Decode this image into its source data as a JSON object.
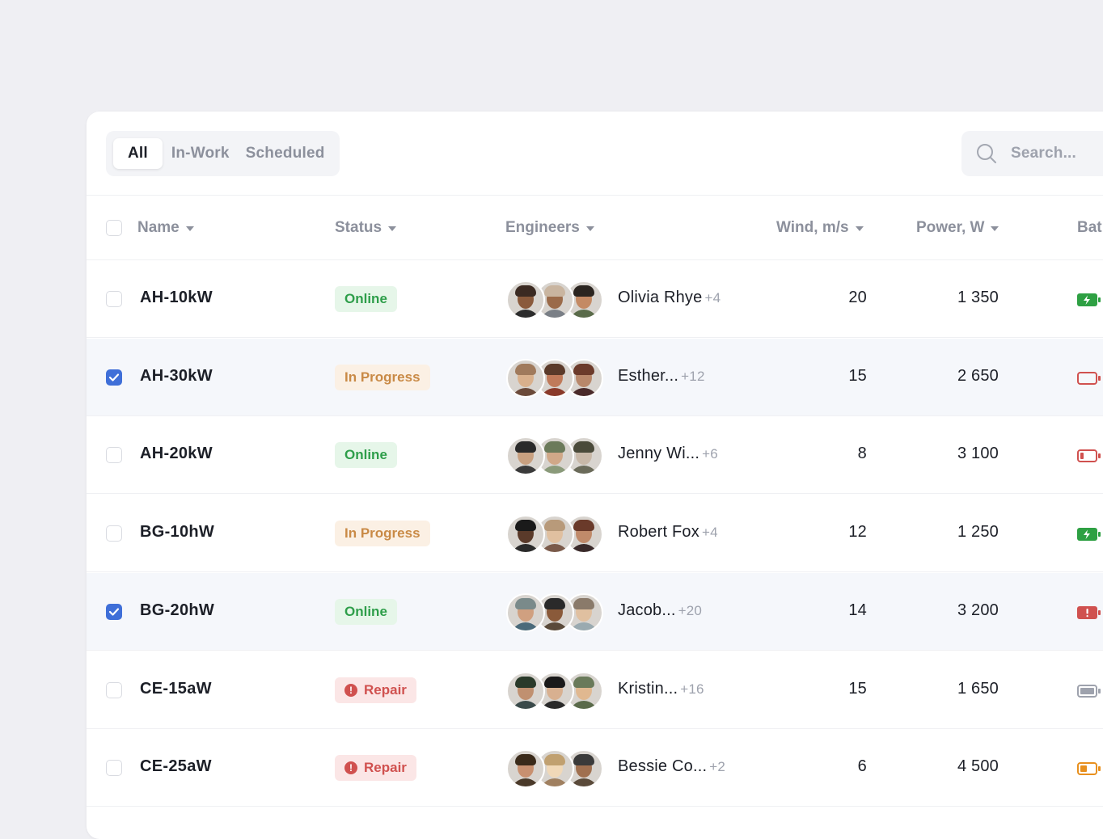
{
  "tabs": [
    {
      "label": "All",
      "active": true
    },
    {
      "label": "In-Work",
      "active": false
    },
    {
      "label": "Scheduled",
      "active": false
    }
  ],
  "search": {
    "placeholder": "Search...",
    "icon": "search-icon"
  },
  "columns": {
    "name": "Name",
    "status": "Status",
    "engineers": "Engineers",
    "wind": "Wind, m/s",
    "power": "Power, W",
    "battery": "Bat"
  },
  "colors": {
    "accent": "#3f6fd8",
    "online": "#2e9e4a",
    "in_progress": "#c98a46",
    "repair": "#d0514f",
    "battery_green": "#2ea043",
    "battery_red": "#d0514f",
    "battery_orange": "#e8901e",
    "battery_gray": "#9ea2ad"
  },
  "rows": [
    {
      "name": "AH-10kW",
      "checked": false,
      "status": "Online",
      "status_type": "online",
      "engineer": "Olivia Rhye",
      "more": "+4",
      "wind": "20",
      "power": "1 350",
      "battery": "charging-green"
    },
    {
      "name": "AH-30kW",
      "checked": true,
      "status": "In Progress",
      "status_type": "progress",
      "engineer": "Esther...",
      "more": "+12",
      "wind": "15",
      "power": "2 650",
      "battery": "empty-red"
    },
    {
      "name": "AH-20kW",
      "checked": false,
      "status": "Online",
      "status_type": "online",
      "engineer": "Jenny Wi...",
      "more": "+6",
      "wind": "8",
      "power": "3 100",
      "battery": "low-red"
    },
    {
      "name": "BG-10hW",
      "checked": false,
      "status": "In Progress",
      "status_type": "progress",
      "engineer": "Robert Fox",
      "more": "+4",
      "wind": "12",
      "power": "1 250",
      "battery": "charging-green"
    },
    {
      "name": "BG-20hW",
      "checked": true,
      "status": "Online",
      "status_type": "online",
      "engineer": "Jacob...",
      "more": "+20",
      "wind": "14",
      "power": "3 200",
      "battery": "alert-red"
    },
    {
      "name": "CE-15aW",
      "checked": false,
      "status": "Repair",
      "status_type": "repair",
      "engineer": "Kristin...",
      "more": "+16",
      "wind": "15",
      "power": "1 650",
      "battery": "full-gray"
    },
    {
      "name": "CE-25aW",
      "checked": false,
      "status": "Repair",
      "status_type": "repair",
      "engineer": "Bessie Co...",
      "more": "+2",
      "wind": "6",
      "power": "4 500",
      "battery": "half-orange"
    }
  ]
}
